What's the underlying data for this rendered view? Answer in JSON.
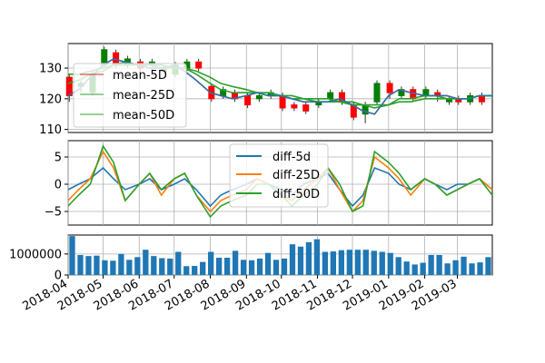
{
  "chart_data": [
    {
      "panel": "price",
      "type": "candlestick",
      "ylim": [
        109,
        138
      ],
      "yticks": [
        "110",
        "120",
        "130"
      ],
      "grid": true,
      "legend": {
        "placement": "lower-left",
        "entries": [
          "mean-5D",
          "mean-25D",
          "mean-50D"
        ]
      },
      "x": [
        "2018-04-01",
        "2018-04-10",
        "2018-04-20",
        "2018-05-01",
        "2018-05-10",
        "2018-05-20",
        "2018-06-01",
        "2018-06-10",
        "2018-06-20",
        "2018-07-01",
        "2018-07-10",
        "2018-07-20",
        "2018-08-01",
        "2018-08-10",
        "2018-08-20",
        "2018-09-01",
        "2018-09-10",
        "2018-09-20",
        "2018-10-01",
        "2018-10-10",
        "2018-10-20",
        "2018-11-01",
        "2018-11-10",
        "2018-11-20",
        "2018-12-01",
        "2018-12-10",
        "2018-12-20",
        "2019-01-01",
        "2019-01-10",
        "2019-01-20",
        "2019-02-01",
        "2019-02-10",
        "2019-02-20",
        "2019-03-01",
        "2019-03-10",
        "2019-03-20",
        "2019-03-31"
      ],
      "series": [
        {
          "name": "mean-5D",
          "color": "#d62728",
          "values": [
            121,
            123,
            127,
            131,
            133,
            132,
            131,
            130,
            130,
            131,
            129,
            126,
            122,
            121,
            120,
            121,
            122,
            121,
            121,
            120,
            119,
            119,
            119,
            120,
            118,
            116,
            115,
            121,
            123,
            122,
            121,
            121,
            121,
            120,
            120,
            121,
            121
          ]
        },
        {
          "name": "mean-25D",
          "color": "#2ca02c",
          "values": [
            125,
            126,
            128,
            129,
            131,
            132,
            131,
            131,
            130,
            130,
            130,
            128,
            125,
            123,
            122,
            122,
            122,
            121,
            121,
            120,
            120,
            119,
            119,
            119,
            118,
            118,
            117,
            118,
            120,
            120,
            121,
            121,
            120,
            120,
            120,
            121,
            121
          ]
        },
        {
          "name": "mean-50D",
          "color": "#2ca02c",
          "values": [
            128,
            128,
            129,
            130,
            131,
            131,
            131,
            131,
            131,
            130,
            130,
            129,
            127,
            125,
            124,
            123,
            122,
            122,
            121,
            121,
            120,
            120,
            120,
            119,
            119,
            118,
            118,
            118,
            119,
            119,
            120,
            120,
            120,
            120,
            120,
            121,
            121
          ]
        }
      ],
      "candles": [
        {
          "x": "2018-04-02",
          "o": 127,
          "c": 121,
          "h": 128,
          "l": 119
        },
        {
          "x": "2018-04-12",
          "o": 124,
          "c": 125,
          "h": 126,
          "l": 122
        },
        {
          "x": "2018-04-22",
          "o": 122,
          "c": 128,
          "h": 129,
          "l": 121
        },
        {
          "x": "2018-05-02",
          "o": 131,
          "c": 136,
          "h": 137,
          "l": 130
        },
        {
          "x": "2018-05-12",
          "o": 135,
          "c": 131,
          "h": 136,
          "l": 130
        },
        {
          "x": "2018-05-22",
          "o": 131,
          "c": 133,
          "h": 134,
          "l": 130
        },
        {
          "x": "2018-06-02",
          "o": 132,
          "c": 130,
          "h": 133,
          "l": 129
        },
        {
          "x": "2018-06-12",
          "o": 131,
          "c": 132,
          "h": 133,
          "l": 129
        },
        {
          "x": "2018-06-22",
          "o": 129,
          "c": 130,
          "h": 131,
          "l": 128
        },
        {
          "x": "2018-07-02",
          "o": 128,
          "c": 131,
          "h": 132,
          "l": 127
        },
        {
          "x": "2018-07-12",
          "o": 130,
          "c": 132,
          "h": 133,
          "l": 129
        },
        {
          "x": "2018-07-22",
          "o": 132,
          "c": 130,
          "h": 133,
          "l": 129
        },
        {
          "x": "2018-08-02",
          "o": 124,
          "c": 120,
          "h": 125,
          "l": 119
        },
        {
          "x": "2018-08-12",
          "o": 121,
          "c": 123,
          "h": 124,
          "l": 120
        },
        {
          "x": "2018-08-22",
          "o": 122,
          "c": 120,
          "h": 123,
          "l": 119
        },
        {
          "x": "2018-09-02",
          "o": 121,
          "c": 118,
          "h": 122,
          "l": 117
        },
        {
          "x": "2018-09-12",
          "o": 120,
          "c": 121,
          "h": 122,
          "l": 119
        },
        {
          "x": "2018-09-22",
          "o": 121,
          "c": 122,
          "h": 123,
          "l": 120
        },
        {
          "x": "2018-10-02",
          "o": 121,
          "c": 117,
          "h": 122,
          "l": 116
        },
        {
          "x": "2018-10-12",
          "o": 118,
          "c": 117,
          "h": 119,
          "l": 116
        },
        {
          "x": "2018-10-22",
          "o": 118,
          "c": 116,
          "h": 119,
          "l": 115
        },
        {
          "x": "2018-11-02",
          "o": 118,
          "c": 119,
          "h": 120,
          "l": 117
        },
        {
          "x": "2018-11-12",
          "o": 120,
          "c": 122,
          "h": 123,
          "l": 119
        },
        {
          "x": "2018-11-22",
          "o": 122,
          "c": 119,
          "h": 123,
          "l": 118
        },
        {
          "x": "2018-12-02",
          "o": 118,
          "c": 114,
          "h": 119,
          "l": 113
        },
        {
          "x": "2018-12-12",
          "o": 115,
          "c": 118,
          "h": 119,
          "l": 112
        },
        {
          "x": "2018-12-22",
          "o": 119,
          "c": 125,
          "h": 126,
          "l": 118
        },
        {
          "x": "2019-01-02",
          "o": 125,
          "c": 122,
          "h": 126,
          "l": 120
        },
        {
          "x": "2019-01-12",
          "o": 121,
          "c": 123,
          "h": 124,
          "l": 120
        },
        {
          "x": "2019-01-22",
          "o": 123,
          "c": 120,
          "h": 124,
          "l": 119
        },
        {
          "x": "2019-02-02",
          "o": 121,
          "c": 123,
          "h": 124,
          "l": 120
        },
        {
          "x": "2019-02-12",
          "o": 122,
          "c": 121,
          "h": 123,
          "l": 119
        },
        {
          "x": "2019-02-22",
          "o": 119,
          "c": 120,
          "h": 121,
          "l": 118
        },
        {
          "x": "2019-03-02",
          "o": 120,
          "c": 119,
          "h": 121,
          "l": 118
        },
        {
          "x": "2019-03-12",
          "o": 119,
          "c": 121,
          "h": 122,
          "l": 118
        },
        {
          "x": "2019-03-22",
          "o": 121,
          "c": 119,
          "h": 122,
          "l": 118
        }
      ]
    },
    {
      "panel": "diff",
      "type": "line",
      "ylim": [
        -7.5,
        8
      ],
      "yticks": [
        "5",
        "0",
        "−5"
      ],
      "grid": true,
      "legend": {
        "placement": "top-center",
        "entries": [
          "diff-5d",
          "diff-25D",
          "diff-50D"
        ]
      },
      "x": [
        "2018-04-01",
        "2018-04-10",
        "2018-04-20",
        "2018-05-01",
        "2018-05-10",
        "2018-05-20",
        "2018-06-01",
        "2018-06-10",
        "2018-06-20",
        "2018-07-01",
        "2018-07-10",
        "2018-07-20",
        "2018-08-01",
        "2018-08-10",
        "2018-08-20",
        "2018-09-01",
        "2018-09-10",
        "2018-09-20",
        "2018-10-01",
        "2018-10-10",
        "2018-10-20",
        "2018-11-01",
        "2018-11-10",
        "2018-11-20",
        "2018-12-01",
        "2018-12-10",
        "2018-12-20",
        "2019-01-01",
        "2019-01-10",
        "2019-01-20",
        "2019-02-01",
        "2019-02-10",
        "2019-02-20",
        "2019-03-01",
        "2019-03-10",
        "2019-03-20",
        "2019-03-31"
      ],
      "series": [
        {
          "name": "diff-5d",
          "color": "#1f77b4",
          "values": [
            -1,
            0,
            1,
            3,
            1,
            -1,
            0,
            1,
            -1,
            0,
            1,
            -1,
            -4,
            -2,
            -1,
            0,
            1,
            0,
            -1,
            -2,
            0,
            1,
            2,
            -1,
            -4,
            -2,
            3,
            2,
            0,
            -1,
            1,
            0,
            -1,
            0,
            0,
            1,
            -1
          ]
        },
        {
          "name": "diff-25D",
          "color": "#ff7f0e",
          "values": [
            -3,
            -1,
            1,
            6,
            3,
            -3,
            0,
            2,
            -2,
            1,
            2,
            -2,
            -5,
            -3,
            -2,
            -1,
            1,
            0,
            -2,
            -3,
            -1,
            1,
            3,
            -1,
            -5,
            -3,
            5,
            3,
            1,
            -2,
            1,
            0,
            -2,
            -1,
            0,
            1,
            -1
          ]
        },
        {
          "name": "diff-50D",
          "color": "#2ca02c",
          "values": [
            -4,
            -2,
            0,
            7,
            4,
            -3,
            0,
            2,
            -1,
            1,
            2,
            -2,
            -6,
            -4,
            -3,
            -2,
            0,
            0,
            -2,
            -4,
            -2,
            0,
            3,
            0,
            -5,
            -4,
            6,
            4,
            2,
            -1,
            1,
            0,
            -2,
            -1,
            0,
            1,
            -2
          ]
        }
      ]
    },
    {
      "panel": "volume",
      "type": "bar",
      "ylim": [
        0,
        1900000
      ],
      "yticks": [
        "0",
        "1000000"
      ],
      "grid": true,
      "xticks": [
        "2018-04",
        "2018-05",
        "2018-06",
        "2018-07",
        "2018-08",
        "2018-09",
        "2018-10",
        "2018-11",
        "2018-12",
        "2019-01",
        "2019-02",
        "2019-03"
      ],
      "color": "#1f77b4",
      "values": [
        1850000,
        950000,
        900000,
        920000,
        700000,
        680000,
        1000000,
        720000,
        850000,
        1200000,
        900000,
        800000,
        780000,
        1100000,
        420000,
        430000,
        620000,
        1100000,
        820000,
        820000,
        1150000,
        720000,
        700000,
        780000,
        1050000,
        720000,
        780000,
        1460000,
        1350000,
        1560000,
        1700000,
        1100000,
        1120000,
        1180000,
        1200000,
        1200000,
        1200000,
        1150000,
        1100000,
        1050000,
        850000,
        640000,
        500000,
        580000,
        950000,
        950000,
        550000,
        700000,
        870000,
        550000,
        600000,
        850000
      ]
    }
  ]
}
